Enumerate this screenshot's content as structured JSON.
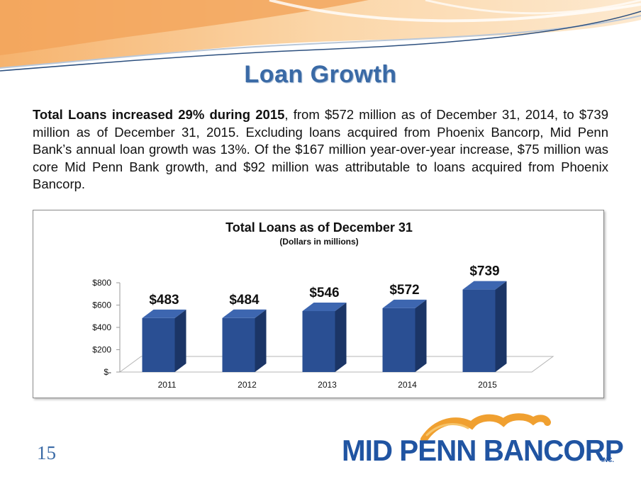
{
  "slide": {
    "title": "Loan Growth",
    "page_number": "15",
    "paragraph_bold": "Total Loans increased 29% during 2015",
    "paragraph_rest": ", from $572 million as of December 31, 2014, to $739 million as of December 31, 2015.  Excluding loans acquired from Phoenix Bancorp, Mid Penn Bank’s annual loan growth was 13%.  Of the $167 million year-over-year increase, $75 million was core Mid Penn Bank growth, and $92 million was attributable to loans acquired from Phoenix Bancorp."
  },
  "logo": {
    "text": "MID PENN BANCORP",
    "suffix": "INC.",
    "color": "#2054a2",
    "swoosh_color": "#f0a030"
  },
  "colors": {
    "title": "#3a6aa6",
    "bar_front": "#2a4f93",
    "bar_side": "#1b3566",
    "bar_top": "#3d66b0",
    "banner_orange": "#f5b877"
  },
  "chart_data": {
    "type": "bar",
    "title": "Total Loans as of December 31",
    "subtitle": "(Dollars in millions)",
    "categories": [
      "2011",
      "2012",
      "2013",
      "2014",
      "2015"
    ],
    "values": [
      483,
      484,
      546,
      572,
      739
    ],
    "data_labels": [
      "$483",
      "$484",
      "$546",
      "$572",
      "$739"
    ],
    "y_ticks": [
      0,
      200,
      400,
      600,
      800
    ],
    "y_tick_labels": [
      "$-",
      "$200",
      "$400",
      "$600",
      "$800"
    ],
    "ylim": [
      0,
      800
    ],
    "xlabel": "",
    "ylabel": "",
    "three_d": true,
    "legend": "none",
    "grid": false
  }
}
